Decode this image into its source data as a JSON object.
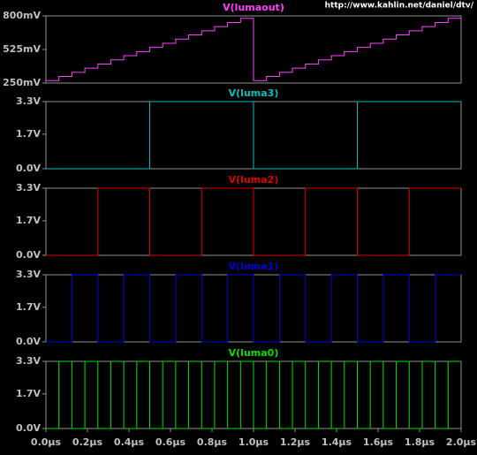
{
  "header": {
    "text": "http://www.kahlin.net/daniel/dtv/"
  },
  "chart_data": [
    {
      "type": "step",
      "x": [
        0,
        0.0625,
        0.125,
        0.1875,
        0.25,
        0.3125,
        0.375,
        0.4375,
        0.5,
        0.5625,
        0.625,
        0.6875,
        0.75,
        0.8125,
        0.875,
        0.9375,
        1,
        1.0625,
        1.125,
        1.1875,
        1.25,
        1.3125,
        1.375,
        1.4375,
        1.5,
        1.5625,
        1.625,
        1.6875,
        1.75,
        1.8125,
        1.875,
        1.9375,
        2
      ],
      "series": [
        {
          "name": "V(lumaout)",
          "color": "#ff40ff",
          "values": [
            270,
            304,
            338,
            372,
            406,
            440,
            474,
            508,
            542,
            576,
            610,
            644,
            678,
            712,
            746,
            780,
            270,
            304,
            338,
            372,
            406,
            440,
            474,
            508,
            542,
            576,
            610,
            644,
            678,
            712,
            746,
            780,
            780
          ]
        }
      ],
      "xlim": [
        0,
        2
      ],
      "ylim": [
        250,
        800
      ],
      "yticks": [
        {
          "value": 250,
          "label": "250mV"
        },
        {
          "value": 525,
          "label": "525mV"
        },
        {
          "value": 800,
          "label": "800mV"
        }
      ]
    },
    {
      "type": "step",
      "x": [
        0,
        0.0625,
        0.125,
        0.1875,
        0.25,
        0.3125,
        0.375,
        0.4375,
        0.5,
        0.5625,
        0.625,
        0.6875,
        0.75,
        0.8125,
        0.875,
        0.9375,
        1,
        1.0625,
        1.125,
        1.1875,
        1.25,
        1.3125,
        1.375,
        1.4375,
        1.5,
        1.5625,
        1.625,
        1.6875,
        1.75,
        1.8125,
        1.875,
        1.9375,
        2
      ],
      "series": [
        {
          "name": "V(luma3)",
          "color": "#00c0c0",
          "values": [
            0,
            0,
            0,
            0,
            0,
            0,
            0,
            0,
            3.3,
            3.3,
            3.3,
            3.3,
            3.3,
            3.3,
            3.3,
            3.3,
            0,
            0,
            0,
            0,
            0,
            0,
            0,
            0,
            3.3,
            3.3,
            3.3,
            3.3,
            3.3,
            3.3,
            3.3,
            3.3,
            3.3
          ]
        }
      ],
      "xlim": [
        0,
        2
      ],
      "ylim": [
        0,
        3.3
      ],
      "yticks": [
        {
          "value": 0,
          "label": "0.0V"
        },
        {
          "value": 1.7,
          "label": "1.7V"
        },
        {
          "value": 3.3,
          "label": "3.3V"
        }
      ]
    },
    {
      "type": "step",
      "x": [
        0,
        0.0625,
        0.125,
        0.1875,
        0.25,
        0.3125,
        0.375,
        0.4375,
        0.5,
        0.5625,
        0.625,
        0.6875,
        0.75,
        0.8125,
        0.875,
        0.9375,
        1,
        1.0625,
        1.125,
        1.1875,
        1.25,
        1.3125,
        1.375,
        1.4375,
        1.5,
        1.5625,
        1.625,
        1.6875,
        1.75,
        1.8125,
        1.875,
        1.9375,
        2
      ],
      "series": [
        {
          "name": "V(luma2)",
          "color": "#e00000",
          "values": [
            0,
            0,
            0,
            0,
            3.3,
            3.3,
            3.3,
            3.3,
            0,
            0,
            0,
            0,
            3.3,
            3.3,
            3.3,
            3.3,
            0,
            0,
            0,
            0,
            3.3,
            3.3,
            3.3,
            3.3,
            0,
            0,
            0,
            0,
            3.3,
            3.3,
            3.3,
            3.3,
            3.3
          ]
        }
      ],
      "xlim": [
        0,
        2
      ],
      "ylim": [
        0,
        3.3
      ],
      "yticks": [
        {
          "value": 0,
          "label": "0.0V"
        },
        {
          "value": 1.7,
          "label": "1.7V"
        },
        {
          "value": 3.3,
          "label": "3.3V"
        }
      ]
    },
    {
      "type": "step",
      "x": [
        0,
        0.0625,
        0.125,
        0.1875,
        0.25,
        0.3125,
        0.375,
        0.4375,
        0.5,
        0.5625,
        0.625,
        0.6875,
        0.75,
        0.8125,
        0.875,
        0.9375,
        1,
        1.0625,
        1.125,
        1.1875,
        1.25,
        1.3125,
        1.375,
        1.4375,
        1.5,
        1.5625,
        1.625,
        1.6875,
        1.75,
        1.8125,
        1.875,
        1.9375,
        2
      ],
      "series": [
        {
          "name": "V(luma1)",
          "color": "#0000e0",
          "values": [
            0,
            0,
            3.3,
            3.3,
            0,
            0,
            3.3,
            3.3,
            0,
            0,
            3.3,
            3.3,
            0,
            0,
            3.3,
            3.3,
            0,
            0,
            3.3,
            3.3,
            0,
            0,
            3.3,
            3.3,
            0,
            0,
            3.3,
            3.3,
            0,
            0,
            3.3,
            3.3,
            3.3
          ]
        }
      ],
      "xlim": [
        0,
        2
      ],
      "ylim": [
        0,
        3.3
      ],
      "yticks": [
        {
          "value": 0,
          "label": "0.0V"
        },
        {
          "value": 1.7,
          "label": "1.7V"
        },
        {
          "value": 3.3,
          "label": "3.3V"
        }
      ]
    },
    {
      "type": "step",
      "x": [
        0,
        0.0625,
        0.125,
        0.1875,
        0.25,
        0.3125,
        0.375,
        0.4375,
        0.5,
        0.5625,
        0.625,
        0.6875,
        0.75,
        0.8125,
        0.875,
        0.9375,
        1,
        1.0625,
        1.125,
        1.1875,
        1.25,
        1.3125,
        1.375,
        1.4375,
        1.5,
        1.5625,
        1.625,
        1.6875,
        1.75,
        1.8125,
        1.875,
        1.9375,
        2
      ],
      "series": [
        {
          "name": "V(luma0)",
          "color": "#00e000",
          "values": [
            0,
            3.3,
            0,
            3.3,
            0,
            3.3,
            0,
            3.3,
            0,
            3.3,
            0,
            3.3,
            0,
            3.3,
            0,
            3.3,
            0,
            3.3,
            0,
            3.3,
            0,
            3.3,
            0,
            3.3,
            0,
            3.3,
            0,
            3.3,
            0,
            3.3,
            0,
            3.3,
            3.3
          ]
        }
      ],
      "xlim": [
        0,
        2
      ],
      "ylim": [
        0,
        3.3
      ],
      "yticks": [
        {
          "value": 0,
          "label": "0.0V"
        },
        {
          "value": 1.7,
          "label": "1.7V"
        },
        {
          "value": 3.3,
          "label": "3.3V"
        }
      ],
      "xticks": [
        {
          "value": 0,
          "label": "0.0µs"
        },
        {
          "value": 0.2,
          "label": "0.2µs"
        },
        {
          "value": 0.4,
          "label": "0.4µs"
        },
        {
          "value": 0.6,
          "label": "0.6µs"
        },
        {
          "value": 0.8,
          "label": "0.8µs"
        },
        {
          "value": 1,
          "label": "1.0µs"
        },
        {
          "value": 1.2,
          "label": "1.2µs"
        },
        {
          "value": 1.4,
          "label": "1.4µs"
        },
        {
          "value": 1.6,
          "label": "1.6µs"
        },
        {
          "value": 1.8,
          "label": "1.8µs"
        },
        {
          "value": 2,
          "label": "2.0µs"
        }
      ]
    }
  ]
}
